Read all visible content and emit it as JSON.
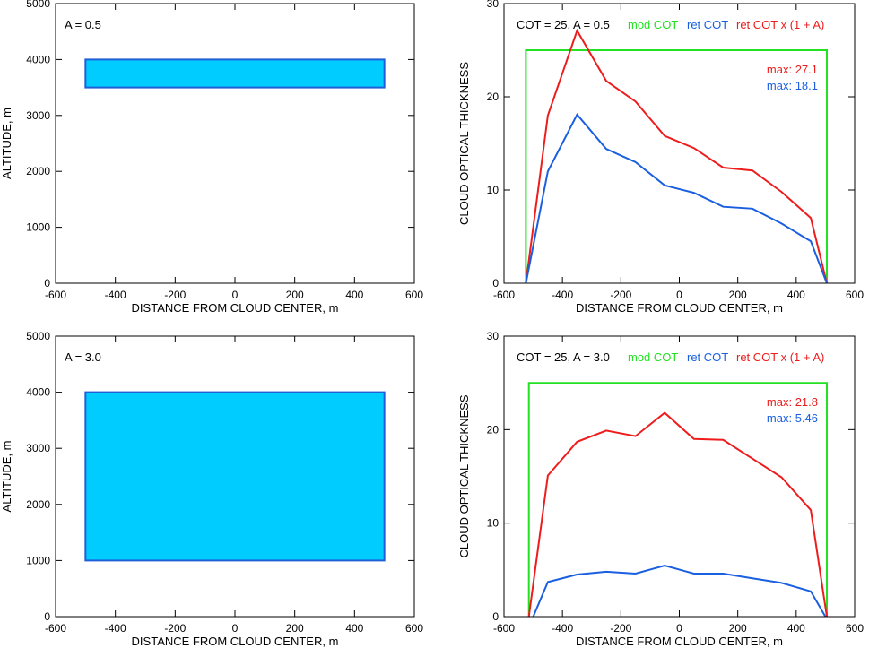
{
  "figure": {
    "colors": {
      "cloud_fill": "#00ccff",
      "cloud_edge": "#1f5fd8",
      "mod": "#22e022",
      "ret": "#1a5fe0",
      "ret_adj": "#ee1c1c",
      "axis": "#000000"
    }
  },
  "chart_data": [
    {
      "id": "cloud_a05",
      "type": "area",
      "annotation": "A = 0.5",
      "xlabel": "DISTANCE FROM CLOUD CENTER, m",
      "ylabel": "ALTITUDE, m",
      "xlim": [
        -600,
        600
      ],
      "ylim": [
        0,
        5000
      ],
      "xticks": [
        -600,
        -400,
        -200,
        0,
        200,
        400,
        600
      ],
      "yticks": [
        0,
        1000,
        2000,
        3000,
        4000,
        5000
      ],
      "cloud": {
        "x": [
          -500,
          500
        ],
        "y": [
          3500,
          4000
        ]
      }
    },
    {
      "id": "cot_a05",
      "type": "line",
      "header": {
        "cot": "COT = 25, A = 0.5",
        "mod": "mod COT",
        "ret": "ret COT",
        "ret_adj": "ret COT x (1 + A)"
      },
      "xlabel": "DISTANCE FROM CLOUD CENTER, m",
      "ylabel": "CLOUD OPTICAL THICKNESS",
      "xlim": [
        -600,
        600
      ],
      "ylim": [
        0,
        30
      ],
      "xticks": [
        -600,
        -400,
        -200,
        0,
        200,
        400,
        600
      ],
      "yticks": [
        0,
        10,
        20,
        30
      ],
      "series": [
        {
          "name": "mod COT",
          "color_key": "mod",
          "x": [
            -525,
            -525,
            505,
            505
          ],
          "y": [
            0,
            25,
            25,
            0
          ]
        },
        {
          "name": "ret COT x (1 + A)",
          "color_key": "ret_adj",
          "x": [
            -525,
            -450,
            -350,
            -250,
            -150,
            -50,
            50,
            150,
            250,
            350,
            450,
            505
          ],
          "y": [
            0,
            18,
            27.1,
            21.7,
            19.5,
            15.8,
            14.5,
            12.4,
            12.1,
            9.8,
            7,
            0
          ]
        },
        {
          "name": "ret COT",
          "color_key": "ret",
          "x": [
            -525,
            -450,
            -350,
            -250,
            -150,
            -50,
            50,
            150,
            250,
            350,
            450,
            505
          ],
          "y": [
            0,
            12,
            18.1,
            14.4,
            13,
            10.5,
            9.7,
            8.2,
            8,
            6.4,
            4.5,
            0
          ]
        }
      ],
      "max_labels": [
        {
          "text": "max: 27.1",
          "color_key": "ret_adj"
        },
        {
          "text": "max: 18.1",
          "color_key": "ret"
        }
      ]
    },
    {
      "id": "cloud_a30",
      "type": "area",
      "annotation": "A = 3.0",
      "xlabel": "DISTANCE FROM CLOUD CENTER, m",
      "ylabel": "ALTITUDE, m",
      "xlim": [
        -600,
        600
      ],
      "ylim": [
        0,
        5000
      ],
      "xticks": [
        -600,
        -400,
        -200,
        0,
        200,
        400,
        600
      ],
      "yticks": [
        0,
        1000,
        2000,
        3000,
        4000,
        5000
      ],
      "cloud": {
        "x": [
          -500,
          500
        ],
        "y": [
          1000,
          4000
        ]
      }
    },
    {
      "id": "cot_a30",
      "type": "line",
      "header": {
        "cot": "COT = 25, A = 3.0",
        "mod": "mod COT",
        "ret": "ret COT",
        "ret_adj": "ret COT x (1 + A)"
      },
      "xlabel": "DISTANCE FROM CLOUD CENTER, m",
      "ylabel": "CLOUD OPTICAL THICKNESS",
      "xlim": [
        -600,
        600
      ],
      "ylim": [
        0,
        30
      ],
      "xticks": [
        -600,
        -400,
        -200,
        0,
        200,
        400,
        600
      ],
      "yticks": [
        0,
        10,
        20,
        30
      ],
      "series": [
        {
          "name": "mod COT",
          "color_key": "mod",
          "x": [
            -515,
            -515,
            505,
            505
          ],
          "y": [
            0,
            25,
            25,
            0
          ]
        },
        {
          "name": "ret COT x (1 + A)",
          "color_key": "ret_adj",
          "x": [
            -515,
            -450,
            -350,
            -250,
            -150,
            -50,
            50,
            150,
            250,
            350,
            450,
            505
          ],
          "y": [
            0,
            15.1,
            18.7,
            19.9,
            19.3,
            21.8,
            19,
            18.9,
            16.9,
            14.9,
            11.4,
            0
          ]
        },
        {
          "name": "ret COT",
          "color_key": "ret",
          "x": [
            -500,
            -450,
            -350,
            -250,
            -150,
            -50,
            50,
            150,
            250,
            350,
            450,
            500
          ],
          "y": [
            0,
            3.7,
            4.5,
            4.8,
            4.6,
            5.46,
            4.6,
            4.6,
            4.1,
            3.6,
            2.7,
            0
          ]
        }
      ],
      "max_labels": [
        {
          "text": "max: 21.8",
          "color_key": "ret_adj"
        },
        {
          "text": "max: 5.46",
          "color_key": "ret"
        }
      ]
    }
  ]
}
